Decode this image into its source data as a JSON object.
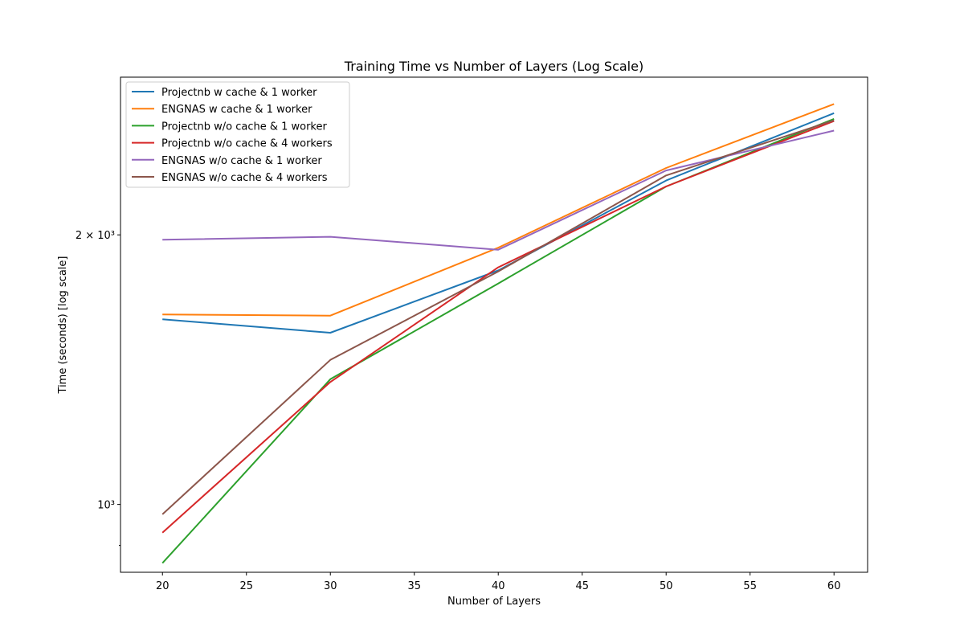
{
  "chart_data": {
    "type": "line",
    "title": "Training Time vs Number of Layers (Log Scale)",
    "xlabel": "Number of Layers",
    "ylabel": "Time (seconds) [log scale]",
    "x": [
      20,
      30,
      40,
      50,
      60
    ],
    "xlim": [
      17.5,
      62.0
    ],
    "ylim": [
      840,
      3000
    ],
    "yscale": "log",
    "xticks": [
      20,
      25,
      30,
      35,
      40,
      45,
      50,
      55,
      60
    ],
    "xtick_labels": [
      "20",
      "25",
      "30",
      "35",
      "40",
      "45",
      "50",
      "55",
      "60"
    ],
    "yticks_major": [
      1000,
      2000
    ],
    "ytick_labels": [
      "10³",
      "2 × 10³"
    ],
    "yticks_minor": [
      900
    ],
    "grid": false,
    "legend_position": "upper left",
    "series": [
      {
        "name": "Projectnb w cache & 1 worker",
        "color": "#1f77b4",
        "values": [
          1610,
          1555,
          1825,
          2300,
          2735
        ]
      },
      {
        "name": "ENGNAS w cache & 1 worker",
        "color": "#ff7f0e",
        "values": [
          1630,
          1625,
          1935,
          2375,
          2800
        ]
      },
      {
        "name": "Projectnb w/o cache & 1 worker",
        "color": "#2ca02c",
        "values": [
          860,
          1380,
          1765,
          2265,
          2695
        ]
      },
      {
        "name": "Projectnb w/o cache & 4 workers",
        "color": "#d62728",
        "values": [
          930,
          1370,
          1840,
          2265,
          2680
        ]
      },
      {
        "name": "ENGNAS w/o cache & 1 worker",
        "color": "#9467bd",
        "values": [
          1975,
          1990,
          1925,
          2360,
          2615
        ]
      },
      {
        "name": "ENGNAS w/o cache & 4 workers",
        "color": "#8c564b",
        "values": [
          975,
          1450,
          1820,
          2330,
          2685
        ]
      }
    ]
  }
}
